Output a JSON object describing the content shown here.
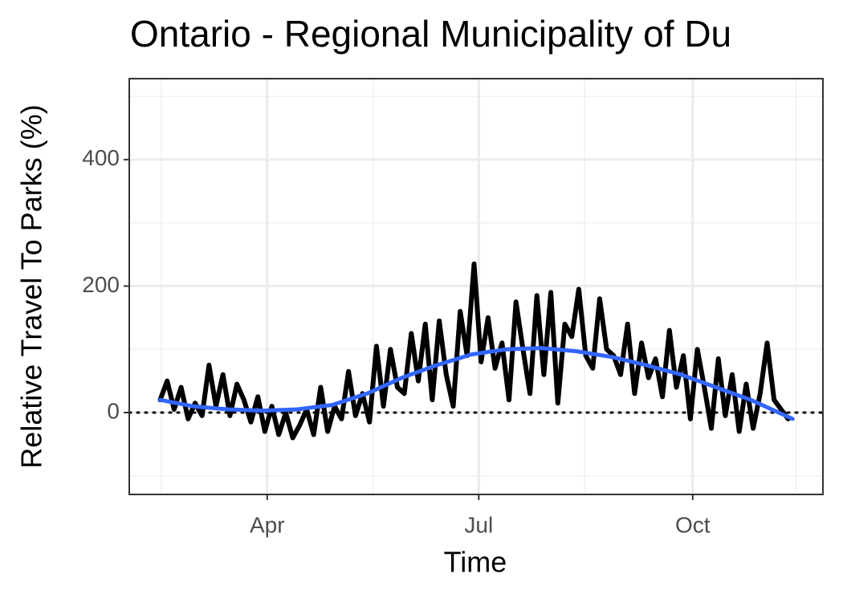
{
  "chart_data": {
    "type": "line",
    "title": "Ontario - Regional Municipality of Du",
    "xlabel": "Time",
    "ylabel": "Relative Travel To Parks (%)",
    "xlim": [
      32.7,
      331
    ],
    "xticks": [
      {
        "value": 92,
        "label": "Apr"
      },
      {
        "value": 183,
        "label": "Jul"
      },
      {
        "value": 275,
        "label": "Oct"
      }
    ],
    "ylim": [
      -129.5,
      528
    ],
    "yticks": [
      0,
      200,
      400
    ],
    "grid": true,
    "hline": 0,
    "series": [
      {
        "color": "#000000",
        "x": [
          46,
          49,
          52,
          55,
          58,
          61,
          64,
          67,
          70,
          73,
          76,
          79,
          82,
          85,
          88,
          91,
          94,
          97,
          100,
          103,
          106,
          109,
          112,
          115,
          118,
          121,
          124,
          127,
          130,
          133,
          136,
          139,
          142,
          145,
          148,
          151,
          154,
          157,
          160,
          163,
          166,
          169,
          172,
          175,
          178,
          181,
          184,
          187,
          190,
          193,
          196,
          199,
          202,
          205,
          208,
          211,
          214,
          217,
          220,
          223,
          226,
          229,
          232,
          235,
          238,
          241,
          244,
          247,
          250,
          253,
          256,
          259,
          262,
          265,
          268,
          271,
          274,
          277,
          280,
          283,
          286,
          289,
          292,
          295,
          298,
          301,
          304,
          307,
          310,
          313,
          316
        ],
        "values": [
          20,
          50,
          5,
          40,
          -10,
          15,
          -5,
          75,
          10,
          60,
          -5,
          45,
          20,
          -15,
          25,
          -30,
          10,
          -35,
          0,
          -40,
          -20,
          5,
          -35,
          40,
          -30,
          10,
          -10,
          65,
          -5,
          30,
          -15,
          105,
          10,
          100,
          40,
          30,
          125,
          50,
          140,
          20,
          145,
          60,
          10,
          160,
          90,
          235,
          80,
          150,
          70,
          110,
          20,
          175,
          100,
          30,
          185,
          60,
          190,
          15,
          140,
          120,
          195,
          90,
          70,
          180,
          100,
          90,
          60,
          140,
          30,
          110,
          55,
          85,
          25,
          130,
          40,
          90,
          -10,
          100,
          40,
          -25,
          85,
          -5,
          60,
          -30,
          45,
          -25,
          30,
          110,
          20,
          5,
          -10
        ]
      },
      {
        "color": "#3366ff",
        "x": [
          46,
          60,
          75,
          90,
          105,
          120,
          135,
          150,
          165,
          180,
          195,
          210,
          225,
          240,
          255,
          270,
          285,
          300,
          318
        ],
        "values": [
          20,
          10,
          5,
          3,
          5,
          12,
          30,
          55,
          75,
          92,
          100,
          102,
          97,
          88,
          75,
          60,
          40,
          20,
          -10
        ]
      }
    ]
  }
}
